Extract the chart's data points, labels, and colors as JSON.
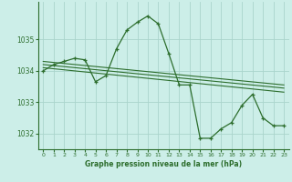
{
  "title": "Graphe pression niveau de la mer (hPa)",
  "background_color": "#cceee8",
  "grid_color": "#aad4cc",
  "line_color": "#2d6e2d",
  "xlim": [
    -0.5,
    23.5
  ],
  "ylim": [
    1031.5,
    1036.2
  ],
  "yticks": [
    1032,
    1033,
    1034,
    1035
  ],
  "xticks": [
    0,
    1,
    2,
    3,
    4,
    5,
    6,
    7,
    8,
    9,
    10,
    11,
    12,
    13,
    14,
    15,
    16,
    17,
    18,
    19,
    20,
    21,
    22,
    23
  ],
  "main_series_x": [
    0,
    1,
    2,
    3,
    4,
    5,
    6,
    7,
    8,
    9,
    10,
    11,
    12,
    13,
    14,
    15,
    16,
    17,
    18,
    19,
    20,
    21,
    22,
    23
  ],
  "main_series_y": [
    1034.0,
    1034.2,
    1034.3,
    1034.4,
    1034.35,
    1033.65,
    1033.85,
    1034.7,
    1035.3,
    1035.55,
    1035.75,
    1035.5,
    1034.55,
    1033.55,
    1033.55,
    1031.85,
    1031.85,
    1032.15,
    1032.35,
    1032.9,
    1033.25,
    1032.5,
    1032.25,
    1032.25
  ],
  "trend1_x": [
    0,
    23
  ],
  "trend1_y": [
    1034.3,
    1033.55
  ],
  "trend2_x": [
    0,
    23
  ],
  "trend2_y": [
    1034.2,
    1033.45
  ],
  "trend3_x": [
    0,
    23
  ],
  "trend3_y": [
    1034.1,
    1033.32
  ]
}
